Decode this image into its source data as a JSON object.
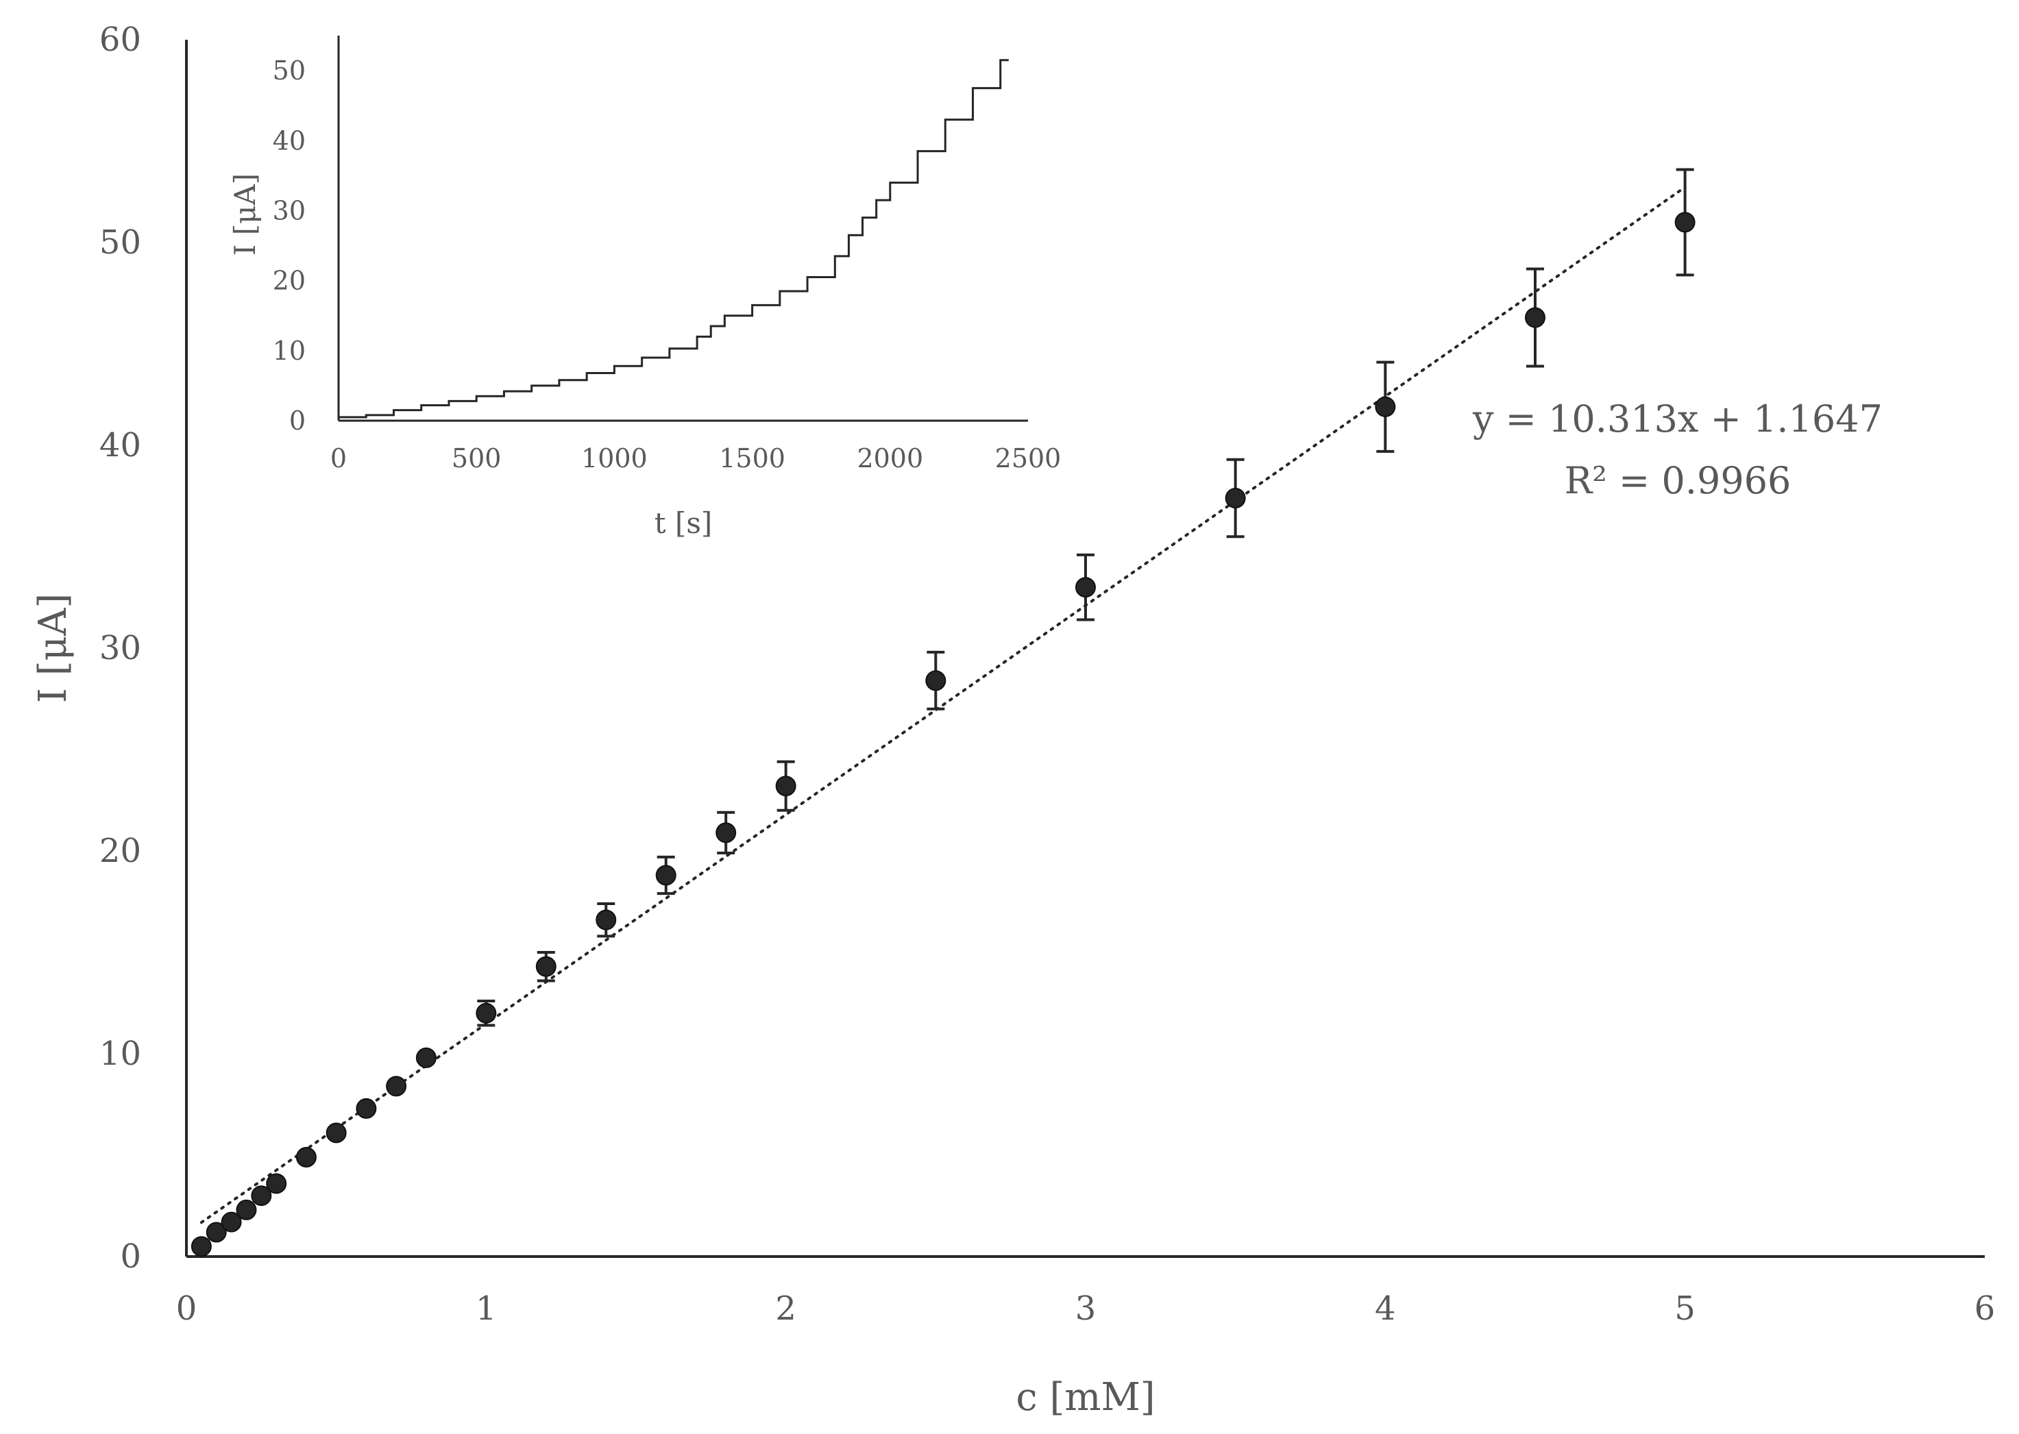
{
  "chart_data": [
    {
      "type": "scatter",
      "title": "",
      "xlabel": "c [mM]",
      "ylabel": "I [μA]",
      "xlim": [
        0,
        6
      ],
      "ylim": [
        0,
        60
      ],
      "xticks": [
        "0",
        "1",
        "2",
        "3",
        "4",
        "5",
        "6"
      ],
      "yticks": [
        "0",
        "10",
        "20",
        "30",
        "40",
        "50",
        "60"
      ],
      "grid": false,
      "series": [
        {
          "points": [
            {
              "x": 0.05,
              "y": 0.5,
              "err": 0.2
            },
            {
              "x": 0.1,
              "y": 1.2,
              "err": 0.2
            },
            {
              "x": 0.15,
              "y": 1.7,
              "err": 0.2
            },
            {
              "x": 0.2,
              "y": 2.3,
              "err": 0.2
            },
            {
              "x": 0.25,
              "y": 3.0,
              "err": 0.25
            },
            {
              "x": 0.3,
              "y": 3.6,
              "err": 0.25
            },
            {
              "x": 0.4,
              "y": 4.9,
              "err": 0.3
            },
            {
              "x": 0.5,
              "y": 6.1,
              "err": 0.3
            },
            {
              "x": 0.6,
              "y": 7.3,
              "err": 0.35
            },
            {
              "x": 0.7,
              "y": 8.4,
              "err": 0.4
            },
            {
              "x": 0.8,
              "y": 9.8,
              "err": 0.45
            },
            {
              "x": 1.0,
              "y": 12.0,
              "err": 0.6
            },
            {
              "x": 1.2,
              "y": 14.3,
              "err": 0.7
            },
            {
              "x": 1.4,
              "y": 16.6,
              "err": 0.8
            },
            {
              "x": 1.6,
              "y": 18.8,
              "err": 0.9
            },
            {
              "x": 1.8,
              "y": 20.9,
              "err": 1.0
            },
            {
              "x": 2.0,
              "y": 23.2,
              "err": 1.2
            },
            {
              "x": 2.5,
              "y": 28.4,
              "err": 1.4
            },
            {
              "x": 3.0,
              "y": 33.0,
              "err": 1.6
            },
            {
              "x": 3.5,
              "y": 37.4,
              "err": 1.9
            },
            {
              "x": 4.0,
              "y": 41.9,
              "err": 2.2
            },
            {
              "x": 4.5,
              "y": 46.3,
              "err": 2.4
            },
            {
              "x": 5.0,
              "y": 51.0,
              "err": 2.6
            }
          ]
        }
      ],
      "trendline": {
        "slope": 10.313,
        "intercept": 1.1647,
        "x_range": [
          0.05,
          5.0
        ],
        "style": "dotted",
        "equation_label": "y = 10.313x + 1.1647",
        "r2_label": "R² = 0.9966"
      },
      "colors": {
        "marker": "#262626",
        "axis": "#262626",
        "text": "#595959"
      }
    },
    {
      "type": "line",
      "title": "",
      "xlabel": "t [s]",
      "ylabel": "I [μA]",
      "xlim": [
        0,
        2500
      ],
      "ylim": [
        0,
        55
      ],
      "xticks": [
        "0",
        "500",
        "1000",
        "1500",
        "2000",
        "2500"
      ],
      "yticks": [
        "0",
        "10",
        "20",
        "30",
        "40",
        "50"
      ],
      "grid": false,
      "series": [
        {
          "x": [
            0,
            100,
            200,
            300,
            400,
            500,
            600,
            700,
            800,
            900,
            1000,
            1100,
            1200,
            1300,
            1350,
            1400,
            1500,
            1600,
            1700,
            1800,
            1850,
            1900,
            1950,
            2000,
            2100,
            2200,
            2300,
            2400
          ],
          "y": [
            0.5,
            0.8,
            1.5,
            2.2,
            2.8,
            3.5,
            4.2,
            5.0,
            5.8,
            6.8,
            7.8,
            9.0,
            10.3,
            12.0,
            13.5,
            15.0,
            16.5,
            18.5,
            20.5,
            23.5,
            26.5,
            29.0,
            31.5,
            34.0,
            38.5,
            43.0,
            47.5,
            51.5
          ]
        }
      ],
      "colors": {
        "line": "#262626",
        "axis": "#262626",
        "text": "#595959"
      }
    }
  ]
}
